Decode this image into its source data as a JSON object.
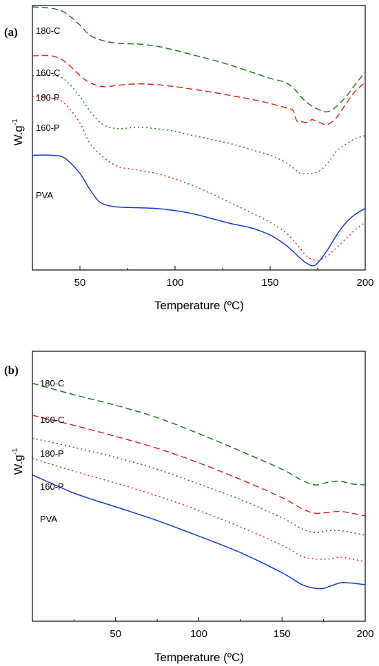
{
  "chart_data": [
    {
      "type": "line",
      "panel_label": "(a)",
      "xlabel": "Temperature (ºC)",
      "ylabel": "W.g",
      "ylabel_superscript": "-1",
      "xlim": [
        25,
        200
      ],
      "xticks": [
        50,
        100,
        150,
        200
      ],
      "y_ticks_shown": false,
      "grid": false,
      "legend": "inline labels at left",
      "series": [
        {
          "name": "180-C",
          "color": "#1a7a1a",
          "dash": "dashed",
          "x": [
            25,
            35,
            42,
            50,
            55,
            62,
            70,
            80,
            90,
            100,
            110,
            120,
            130,
            140,
            150,
            158,
            163,
            166,
            170,
            175,
            180,
            185,
            190,
            195,
            200
          ],
          "y": [
            -0.02,
            -0.04,
            -0.1,
            -0.28,
            -0.42,
            -0.5,
            -0.54,
            -0.55,
            -0.58,
            -0.64,
            -0.71,
            -0.78,
            -0.86,
            -0.95,
            -1.04,
            -1.1,
            -1.2,
            -1.3,
            -1.4,
            -1.48,
            -1.52,
            -1.44,
            -1.3,
            -1.12,
            -0.95
          ]
        },
        {
          "name": "160-C",
          "color": "#e0231b",
          "dash": "dashed",
          "x": [
            25,
            35,
            42,
            50,
            55,
            62,
            70,
            80,
            90,
            100,
            110,
            120,
            130,
            140,
            150,
            158,
            162,
            164,
            166,
            170,
            172,
            175,
            180,
            185,
            190,
            195,
            200
          ],
          "y": [
            -0.72,
            -0.72,
            -0.8,
            -1.0,
            -1.1,
            -1.16,
            -1.14,
            -1.12,
            -1.13,
            -1.16,
            -1.2,
            -1.24,
            -1.29,
            -1.34,
            -1.4,
            -1.46,
            -1.5,
            -1.65,
            -1.66,
            -1.67,
            -1.63,
            -1.66,
            -1.7,
            -1.6,
            -1.4,
            -1.22,
            -1.1
          ]
        },
        {
          "name": "180-P",
          "color": "#1a7a1a",
          "dash": "dotted",
          "x": [
            25,
            35,
            42,
            50,
            55,
            62,
            70,
            80,
            90,
            100,
            110,
            120,
            130,
            140,
            150,
            158,
            163,
            166,
            170,
            175,
            180,
            185,
            190,
            195,
            200
          ],
          "y": [
            -1.0,
            -1.0,
            -1.06,
            -1.3,
            -1.5,
            -1.7,
            -1.76,
            -1.74,
            -1.76,
            -1.8,
            -1.86,
            -1.92,
            -1.98,
            -2.06,
            -2.14,
            -2.24,
            -2.34,
            -2.4,
            -2.4,
            -2.38,
            -2.26,
            -2.08,
            -1.98,
            -1.9,
            -1.86
          ]
        },
        {
          "name": "160-P",
          "color": "#e0231b",
          "dash": "dotted",
          "x": [
            25,
            35,
            42,
            50,
            55,
            62,
            70,
            80,
            90,
            100,
            110,
            120,
            130,
            140,
            150,
            158,
            163,
            166,
            170,
            175,
            180,
            185,
            190,
            195,
            200
          ],
          "y": [
            -1.3,
            -1.32,
            -1.4,
            -1.68,
            -1.96,
            -2.16,
            -2.3,
            -2.35,
            -2.4,
            -2.48,
            -2.58,
            -2.7,
            -2.83,
            -2.96,
            -3.1,
            -3.24,
            -3.38,
            -3.48,
            -3.6,
            -3.64,
            -3.58,
            -3.46,
            -3.33,
            -3.2,
            -3.1
          ]
        },
        {
          "name": "PVA",
          "color": "#1434d8",
          "dash": "solid",
          "x": [
            25,
            35,
            42,
            50,
            55,
            60,
            65,
            70,
            80,
            90,
            100,
            110,
            120,
            130,
            140,
            150,
            158,
            163,
            168,
            172,
            175,
            180,
            185,
            190,
            195,
            200
          ],
          "y": [
            -2.14,
            -2.14,
            -2.18,
            -2.4,
            -2.62,
            -2.8,
            -2.86,
            -2.88,
            -2.89,
            -2.9,
            -2.93,
            -2.98,
            -3.05,
            -3.12,
            -3.18,
            -3.28,
            -3.42,
            -3.54,
            -3.66,
            -3.72,
            -3.68,
            -3.5,
            -3.28,
            -3.1,
            -2.98,
            -2.9
          ]
        }
      ]
    },
    {
      "type": "line",
      "panel_label": "(b)",
      "xlabel": "Temperature (ºC)",
      "ylabel": "W.g",
      "ylabel_superscript": "-1",
      "xlim": [
        0,
        200
      ],
      "xticks": [
        50,
        100,
        150,
        200
      ],
      "y_ticks_shown": false,
      "grid": false,
      "legend": "inline labels at left",
      "series": [
        {
          "name": "180-C",
          "color": "#1a7a1a",
          "dash": "dashed",
          "x": [
            0,
            25,
            50,
            75,
            100,
            125,
            150,
            162,
            170,
            178,
            185,
            192,
            200
          ],
          "y": [
            -0.3,
            -0.55,
            -0.78,
            -1.05,
            -1.4,
            -1.78,
            -2.18,
            -2.42,
            -2.52,
            -2.46,
            -2.44,
            -2.5,
            -2.52
          ]
        },
        {
          "name": "160-C",
          "color": "#e0231b",
          "dash": "dashed",
          "x": [
            0,
            25,
            50,
            75,
            100,
            125,
            150,
            162,
            170,
            178,
            185,
            192,
            200
          ],
          "y": [
            -1.0,
            -1.22,
            -1.46,
            -1.72,
            -2.04,
            -2.4,
            -2.8,
            -3.04,
            -3.14,
            -3.12,
            -3.1,
            -3.14,
            -3.2
          ]
        },
        {
          "name": "180-P",
          "color": "#1a7a1a",
          "dash": "dotted",
          "x": [
            0,
            25,
            50,
            75,
            100,
            125,
            150,
            162,
            170,
            178,
            185,
            192,
            200
          ],
          "y": [
            -1.5,
            -1.7,
            -1.92,
            -2.18,
            -2.5,
            -2.84,
            -3.24,
            -3.48,
            -3.56,
            -3.52,
            -3.52,
            -3.56,
            -3.62
          ]
        },
        {
          "name": "160-P",
          "color": "#e0231b",
          "dash": "dotted",
          "x": [
            0,
            25,
            50,
            75,
            100,
            125,
            150,
            162,
            170,
            178,
            185,
            192,
            200
          ],
          "y": [
            -1.94,
            -2.22,
            -2.48,
            -2.76,
            -3.08,
            -3.44,
            -3.84,
            -4.08,
            -4.14,
            -4.14,
            -4.1,
            -4.14,
            -4.2
          ]
        },
        {
          "name": "PVA",
          "color": "#1434d8",
          "dash": "solid",
          "x": [
            0,
            25,
            50,
            75,
            100,
            125,
            150,
            162,
            170,
            175,
            180,
            185,
            190,
            195,
            200
          ],
          "y": [
            -2.3,
            -2.7,
            -3.0,
            -3.3,
            -3.64,
            -4.0,
            -4.44,
            -4.7,
            -4.78,
            -4.78,
            -4.72,
            -4.66,
            -4.66,
            -4.68,
            -4.7
          ]
        }
      ]
    }
  ]
}
